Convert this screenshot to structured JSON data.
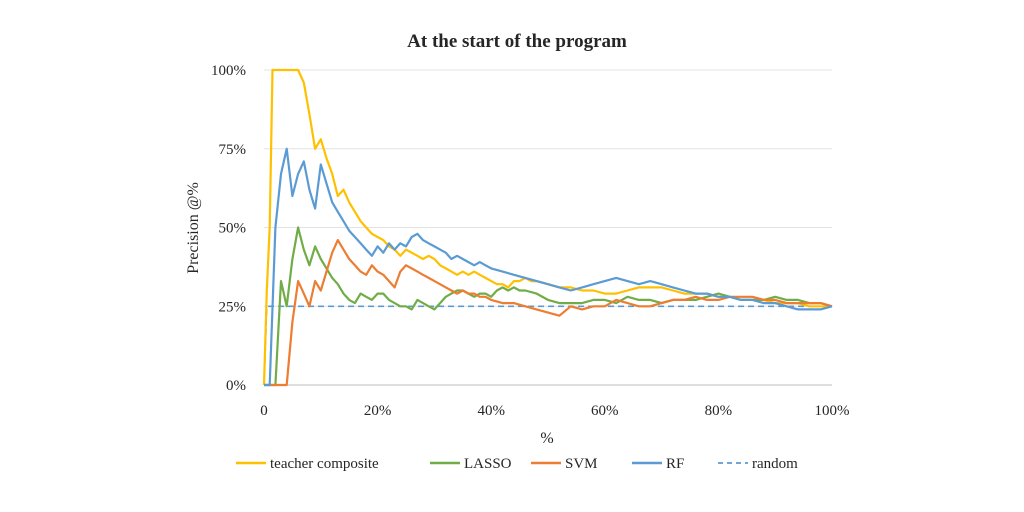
{
  "chart_data": {
    "type": "line",
    "title": "At the start of the program",
    "xlabel": "%",
    "ylabel": "Precision @%",
    "xlim": [
      0,
      100
    ],
    "ylim": [
      0,
      100
    ],
    "x_ticks": [
      "0",
      "20%",
      "40%",
      "60%",
      "80%",
      "100%"
    ],
    "y_ticks": [
      "0%",
      "25%",
      "50%",
      "75%",
      "100%"
    ],
    "grid": "horizontal",
    "legend_position": "bottom",
    "series": [
      {
        "name": "teacher composite",
        "color": "#FFC000",
        "dashed": false,
        "points": [
          [
            0,
            0
          ],
          [
            0.5,
            30
          ],
          [
            1,
            50
          ],
          [
            1.5,
            100
          ],
          [
            2,
            100
          ],
          [
            3,
            100
          ],
          [
            4,
            100
          ],
          [
            5,
            100
          ],
          [
            6,
            100
          ],
          [
            7,
            96
          ],
          [
            8,
            86
          ],
          [
            9,
            75
          ],
          [
            10,
            78
          ],
          [
            11,
            72
          ],
          [
            12,
            67
          ],
          [
            13,
            60
          ],
          [
            14,
            62
          ],
          [
            15,
            58
          ],
          [
            16,
            55
          ],
          [
            17,
            52
          ],
          [
            18,
            50
          ],
          [
            19,
            48
          ],
          [
            20,
            47
          ],
          [
            21,
            46
          ],
          [
            22,
            44
          ],
          [
            23,
            43
          ],
          [
            24,
            41
          ],
          [
            25,
            43
          ],
          [
            26,
            42
          ],
          [
            27,
            41
          ],
          [
            28,
            40
          ],
          [
            29,
            41
          ],
          [
            30,
            40
          ],
          [
            31,
            38
          ],
          [
            32,
            37
          ],
          [
            33,
            36
          ],
          [
            34,
            35
          ],
          [
            35,
            36
          ],
          [
            36,
            35
          ],
          [
            37,
            36
          ],
          [
            38,
            35
          ],
          [
            39,
            34
          ],
          [
            40,
            33
          ],
          [
            41,
            32
          ],
          [
            42,
            32
          ],
          [
            43,
            31
          ],
          [
            44,
            33
          ],
          [
            45,
            33
          ],
          [
            46,
            34
          ],
          [
            47,
            33
          ],
          [
            48,
            33
          ],
          [
            50,
            32
          ],
          [
            52,
            31
          ],
          [
            54,
            31
          ],
          [
            56,
            30
          ],
          [
            58,
            30
          ],
          [
            60,
            29
          ],
          [
            62,
            29
          ],
          [
            64,
            30
          ],
          [
            66,
            31
          ],
          [
            68,
            31
          ],
          [
            70,
            31
          ],
          [
            72,
            30
          ],
          [
            74,
            29
          ],
          [
            76,
            29
          ],
          [
            78,
            29
          ],
          [
            80,
            28
          ],
          [
            82,
            28
          ],
          [
            84,
            27
          ],
          [
            86,
            27
          ],
          [
            88,
            27
          ],
          [
            90,
            26
          ],
          [
            92,
            26
          ],
          [
            94,
            26
          ],
          [
            96,
            25
          ],
          [
            98,
            25
          ],
          [
            100,
            25
          ]
        ]
      },
      {
        "name": "LASSO",
        "color": "#70AD47",
        "dashed": false,
        "points": [
          [
            0,
            0
          ],
          [
            1,
            0
          ],
          [
            2,
            0
          ],
          [
            3,
            33
          ],
          [
            4,
            25
          ],
          [
            5,
            40
          ],
          [
            6,
            50
          ],
          [
            7,
            43
          ],
          [
            8,
            38
          ],
          [
            9,
            44
          ],
          [
            10,
            40
          ],
          [
            11,
            37
          ],
          [
            12,
            34
          ],
          [
            13,
            32
          ],
          [
            14,
            29
          ],
          [
            15,
            27
          ],
          [
            16,
            26
          ],
          [
            17,
            29
          ],
          [
            18,
            28
          ],
          [
            19,
            27
          ],
          [
            20,
            29
          ],
          [
            21,
            29
          ],
          [
            22,
            27
          ],
          [
            23,
            26
          ],
          [
            24,
            25
          ],
          [
            25,
            25
          ],
          [
            26,
            24
          ],
          [
            27,
            27
          ],
          [
            28,
            26
          ],
          [
            29,
            25
          ],
          [
            30,
            24
          ],
          [
            31,
            26
          ],
          [
            32,
            28
          ],
          [
            33,
            29
          ],
          [
            34,
            30
          ],
          [
            35,
            30
          ],
          [
            36,
            29
          ],
          [
            37,
            28
          ],
          [
            38,
            29
          ],
          [
            39,
            29
          ],
          [
            40,
            28
          ],
          [
            41,
            30
          ],
          [
            42,
            31
          ],
          [
            43,
            30
          ],
          [
            44,
            31
          ],
          [
            45,
            30
          ],
          [
            46,
            30
          ],
          [
            48,
            29
          ],
          [
            50,
            27
          ],
          [
            52,
            26
          ],
          [
            54,
            26
          ],
          [
            56,
            26
          ],
          [
            58,
            27
          ],
          [
            60,
            27
          ],
          [
            62,
            26
          ],
          [
            64,
            28
          ],
          [
            66,
            27
          ],
          [
            68,
            27
          ],
          [
            70,
            26
          ],
          [
            72,
            27
          ],
          [
            74,
            27
          ],
          [
            76,
            27
          ],
          [
            78,
            28
          ],
          [
            80,
            29
          ],
          [
            82,
            28
          ],
          [
            84,
            27
          ],
          [
            86,
            27
          ],
          [
            88,
            27
          ],
          [
            90,
            28
          ],
          [
            92,
            27
          ],
          [
            94,
            27
          ],
          [
            96,
            26
          ],
          [
            98,
            26
          ],
          [
            100,
            25
          ]
        ]
      },
      {
        "name": "SVM",
        "color": "#ED7D31",
        "dashed": false,
        "points": [
          [
            0,
            0
          ],
          [
            1,
            0
          ],
          [
            2,
            0
          ],
          [
            3,
            0
          ],
          [
            4,
            0
          ],
          [
            5,
            20
          ],
          [
            6,
            33
          ],
          [
            7,
            29
          ],
          [
            8,
            25
          ],
          [
            9,
            33
          ],
          [
            10,
            30
          ],
          [
            11,
            36
          ],
          [
            12,
            42
          ],
          [
            13,
            46
          ],
          [
            14,
            43
          ],
          [
            15,
            40
          ],
          [
            16,
            38
          ],
          [
            17,
            36
          ],
          [
            18,
            35
          ],
          [
            19,
            38
          ],
          [
            20,
            36
          ],
          [
            21,
            35
          ],
          [
            22,
            33
          ],
          [
            23,
            31
          ],
          [
            24,
            36
          ],
          [
            25,
            38
          ],
          [
            26,
            37
          ],
          [
            27,
            36
          ],
          [
            28,
            35
          ],
          [
            29,
            34
          ],
          [
            30,
            33
          ],
          [
            31,
            32
          ],
          [
            32,
            31
          ],
          [
            33,
            30
          ],
          [
            34,
            29
          ],
          [
            35,
            30
          ],
          [
            36,
            29
          ],
          [
            37,
            29
          ],
          [
            38,
            28
          ],
          [
            39,
            28
          ],
          [
            40,
            27
          ],
          [
            42,
            26
          ],
          [
            44,
            26
          ],
          [
            46,
            25
          ],
          [
            48,
            24
          ],
          [
            50,
            23
          ],
          [
            52,
            22
          ],
          [
            54,
            25
          ],
          [
            56,
            24
          ],
          [
            58,
            25
          ],
          [
            60,
            25
          ],
          [
            62,
            27
          ],
          [
            64,
            26
          ],
          [
            66,
            25
          ],
          [
            68,
            25
          ],
          [
            70,
            26
          ],
          [
            72,
            27
          ],
          [
            74,
            27
          ],
          [
            76,
            28
          ],
          [
            78,
            27
          ],
          [
            80,
            27
          ],
          [
            82,
            28
          ],
          [
            84,
            28
          ],
          [
            86,
            28
          ],
          [
            88,
            27
          ],
          [
            90,
            27
          ],
          [
            92,
            26
          ],
          [
            94,
            26
          ],
          [
            96,
            26
          ],
          [
            98,
            26
          ],
          [
            100,
            25
          ]
        ]
      },
      {
        "name": "RF",
        "color": "#5B9BD5",
        "dashed": false,
        "points": [
          [
            0,
            0
          ],
          [
            1,
            0
          ],
          [
            2,
            50
          ],
          [
            3,
            67
          ],
          [
            4,
            75
          ],
          [
            5,
            60
          ],
          [
            6,
            67
          ],
          [
            7,
            71
          ],
          [
            8,
            62
          ],
          [
            9,
            56
          ],
          [
            10,
            70
          ],
          [
            11,
            64
          ],
          [
            12,
            58
          ],
          [
            13,
            55
          ],
          [
            14,
            52
          ],
          [
            15,
            49
          ],
          [
            16,
            47
          ],
          [
            17,
            45
          ],
          [
            18,
            43
          ],
          [
            19,
            41
          ],
          [
            20,
            44
          ],
          [
            21,
            42
          ],
          [
            22,
            45
          ],
          [
            23,
            43
          ],
          [
            24,
            45
          ],
          [
            25,
            44
          ],
          [
            26,
            47
          ],
          [
            27,
            48
          ],
          [
            28,
            46
          ],
          [
            29,
            45
          ],
          [
            30,
            44
          ],
          [
            31,
            43
          ],
          [
            32,
            42
          ],
          [
            33,
            40
          ],
          [
            34,
            41
          ],
          [
            35,
            40
          ],
          [
            36,
            39
          ],
          [
            37,
            38
          ],
          [
            38,
            39
          ],
          [
            39,
            38
          ],
          [
            40,
            37
          ],
          [
            42,
            36
          ],
          [
            44,
            35
          ],
          [
            46,
            34
          ],
          [
            48,
            33
          ],
          [
            50,
            32
          ],
          [
            52,
            31
          ],
          [
            54,
            30
          ],
          [
            56,
            31
          ],
          [
            58,
            32
          ],
          [
            60,
            33
          ],
          [
            62,
            34
          ],
          [
            64,
            33
          ],
          [
            66,
            32
          ],
          [
            68,
            33
          ],
          [
            70,
            32
          ],
          [
            72,
            31
          ],
          [
            74,
            30
          ],
          [
            76,
            29
          ],
          [
            78,
            29
          ],
          [
            80,
            28
          ],
          [
            82,
            28
          ],
          [
            84,
            27
          ],
          [
            86,
            27
          ],
          [
            88,
            26
          ],
          [
            90,
            26
          ],
          [
            92,
            25
          ],
          [
            94,
            24
          ],
          [
            96,
            24
          ],
          [
            98,
            24
          ],
          [
            100,
            25
          ]
        ]
      },
      {
        "name": "random",
        "color": "#5B9BD5",
        "dashed": true,
        "points": [
          [
            0,
            0
          ],
          [
            0.5,
            25
          ],
          [
            100,
            25
          ]
        ]
      }
    ]
  }
}
